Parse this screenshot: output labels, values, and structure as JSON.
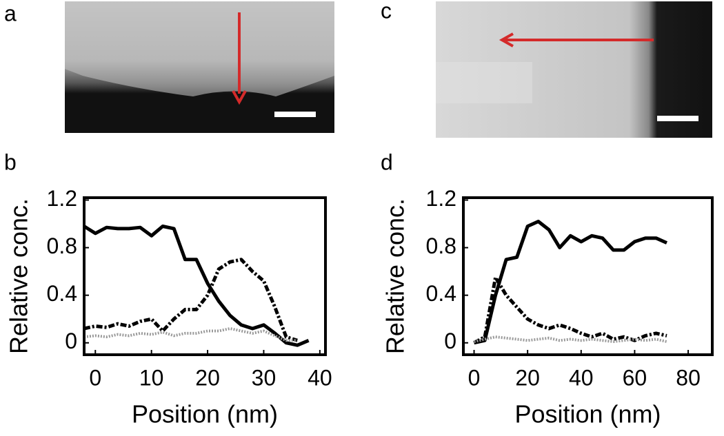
{
  "panels": [
    "a",
    "b",
    "c",
    "d"
  ],
  "chart_data": [
    {
      "type": "line",
      "ylabel": "Relative conc.",
      "xlabel": "Position (nm)",
      "x": [
        -2,
        0,
        2,
        4,
        6,
        8,
        10,
        12,
        14,
        16,
        18,
        20,
        22,
        24,
        26,
        28,
        30,
        32,
        34,
        36,
        38
      ],
      "xlim": [
        -2,
        41
      ],
      "xticks": [
        0,
        10,
        20,
        30,
        40
      ],
      "ylim": [
        -0.1,
        1.22
      ],
      "yticks": [
        0,
        0.4,
        0.8,
        1.2
      ],
      "series": [
        {
          "color": "#000000",
          "style": "solid",
          "values": [
            0.98,
            0.92,
            0.97,
            0.96,
            0.96,
            0.97,
            0.9,
            0.98,
            0.96,
            0.7,
            0.7,
            0.5,
            0.35,
            0.23,
            0.15,
            0.12,
            0.15,
            0.08,
            0,
            -0.02,
            0.02
          ]
        },
        {
          "color": "#000000",
          "style": "dashdot",
          "values": [
            0.12,
            0.14,
            0.13,
            0.16,
            0.14,
            0.18,
            0.2,
            0.1,
            0.2,
            0.28,
            0.28,
            0.4,
            0.62,
            0.68,
            0.7,
            0.6,
            0.52,
            0.3,
            0.05,
            0.02,
            null
          ]
        },
        {
          "color": "#9a9a9a",
          "style": "dotted",
          "values": [
            0.05,
            0.06,
            0.05,
            0.07,
            0.06,
            0.08,
            0.07,
            0.09,
            0.06,
            0.08,
            0.08,
            0.1,
            0.1,
            0.12,
            0.1,
            0.08,
            0.1,
            0.06,
            0.02,
            0.02,
            null
          ]
        }
      ]
    },
    {
      "type": "line",
      "ylabel": "Relative conc.",
      "xlabel": "Position (nm)",
      "x": [
        0,
        4,
        8,
        12,
        16,
        20,
        24,
        28,
        32,
        36,
        40,
        44,
        48,
        52,
        56,
        60,
        64,
        68,
        72
      ],
      "xlim": [
        -4,
        89
      ],
      "xticks": [
        0,
        20,
        40,
        60,
        80
      ],
      "ylim": [
        -0.1,
        1.22
      ],
      "yticks": [
        0,
        0.4,
        0.8,
        1.2
      ],
      "series": [
        {
          "color": "#000000",
          "style": "solid",
          "values": [
            0,
            0.02,
            0.4,
            0.7,
            0.72,
            0.98,
            1.02,
            0.95,
            0.8,
            0.9,
            0.85,
            0.9,
            0.88,
            0.78,
            0.78,
            0.85,
            0.88,
            0.88,
            0.84
          ]
        },
        {
          "color": "#000000",
          "style": "dashdot",
          "values": [
            0,
            0.05,
            0.55,
            0.4,
            0.3,
            0.2,
            0.15,
            0.12,
            0.15,
            0.12,
            0.08,
            0.05,
            0.08,
            0.03,
            0.05,
            0.02,
            0.06,
            0.08,
            0.06
          ]
        },
        {
          "color": "#9a9a9a",
          "style": "dotted",
          "values": [
            0.01,
            0.03,
            0.05,
            0.04,
            0.03,
            0.02,
            0.03,
            0.04,
            0.02,
            0.03,
            0.02,
            0.03,
            0.02,
            0.01,
            0.02,
            0.03,
            0.02,
            0.03,
            0.01
          ]
        }
      ]
    }
  ]
}
